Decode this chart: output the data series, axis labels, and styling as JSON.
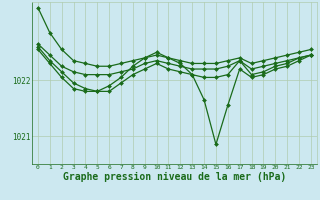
{
  "bg_color": "#cce8f0",
  "plot_bg_color": "#cce8f0",
  "grid_color": "#b0ccb0",
  "line_color": "#1a6b1a",
  "marker_color": "#1a6b1a",
  "xlabel": "Graphe pression niveau de la mer (hPa)",
  "xlabel_fontsize": 7,
  "xlim": [
    -0.5,
    23.5
  ],
  "ylim": [
    1020.5,
    1023.4
  ],
  "yticks": [
    1021,
    1022
  ],
  "xticks": [
    0,
    1,
    2,
    3,
    4,
    5,
    6,
    7,
    8,
    9,
    10,
    11,
    12,
    13,
    14,
    15,
    16,
    17,
    18,
    19,
    20,
    21,
    22,
    23
  ],
  "series": [
    [
      1023.3,
      1022.85,
      1022.55,
      1022.35,
      1022.3,
      1022.25,
      1022.25,
      1022.3,
      1022.35,
      1022.4,
      1022.45,
      1022.4,
      1022.35,
      1022.3,
      1022.3,
      1022.3,
      1022.35,
      1022.4,
      1022.3,
      1022.35,
      1022.4,
      1022.45,
      1022.5,
      1022.55
    ],
    [
      1022.65,
      1022.45,
      1022.25,
      1022.15,
      1022.1,
      1022.1,
      1022.1,
      1022.15,
      1022.2,
      1022.3,
      1022.35,
      1022.3,
      1022.25,
      1022.2,
      1022.2,
      1022.2,
      1022.25,
      1022.35,
      1022.2,
      1022.25,
      1022.3,
      1022.35,
      1022.4,
      1022.45
    ],
    [
      1022.6,
      1022.35,
      1022.15,
      1021.95,
      1021.85,
      1021.8,
      1021.8,
      1021.95,
      1022.1,
      1022.2,
      1022.3,
      1022.2,
      1022.15,
      1022.1,
      1022.05,
      1022.05,
      1022.1,
      1022.35,
      1022.1,
      1022.15,
      1022.25,
      1022.3,
      1022.4,
      1022.45
    ],
    [
      1022.55,
      1022.3,
      1022.05,
      1021.85,
      1021.8,
      1021.8,
      1021.9,
      1022.05,
      1022.25,
      1022.4,
      1022.5,
      1022.4,
      1022.3,
      1022.1,
      1021.65,
      1020.85,
      1021.55,
      1022.2,
      1022.05,
      1022.1,
      1022.2,
      1022.25,
      1022.35,
      1022.45
    ]
  ]
}
